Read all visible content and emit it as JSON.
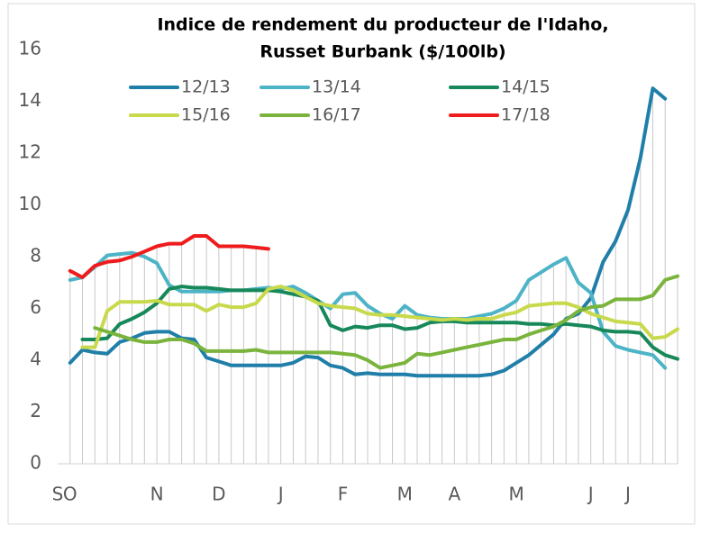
{
  "chart_data": {
    "type": "line",
    "title": [
      "Indice de rendement du producteur de l'Idaho,",
      "Russet Burbank ($/100lb)"
    ],
    "categories": [
      "S",
      "O",
      null,
      null,
      null,
      null,
      null,
      null,
      "N",
      null,
      null,
      null,
      null,
      "D",
      null,
      null,
      null,
      null,
      "J",
      null,
      null,
      null,
      null,
      "F",
      null,
      null,
      null,
      null,
      "M",
      null,
      null,
      null,
      "A",
      null,
      null,
      null,
      null,
      "M",
      null,
      null,
      null,
      null,
      null,
      "J",
      null,
      null,
      "J",
      null,
      null,
      null,
      null
    ],
    "ylim": [
      0,
      16
    ],
    "yticks": [
      0,
      2,
      4,
      6,
      8,
      10,
      12,
      14,
      16
    ],
    "series": [
      {
        "name": "12/13",
        "color": "#1f7fa8",
        "values": [
          null,
          3.9,
          4.4,
          4.3,
          4.25,
          4.7,
          4.85,
          5.05,
          5.1,
          5.1,
          4.85,
          4.8,
          4.1,
          3.95,
          3.8,
          3.8,
          3.8,
          3.8,
          3.8,
          3.9,
          4.15,
          4.1,
          3.8,
          3.7,
          3.45,
          3.5,
          3.45,
          3.45,
          3.45,
          3.4,
          3.4,
          3.4,
          3.4,
          3.4,
          3.4,
          3.45,
          3.6,
          3.9,
          4.2,
          4.6,
          5.0,
          5.6,
          5.8,
          6.4,
          7.8,
          8.6,
          9.8,
          11.8,
          14.5,
          14.1,
          null
        ]
      },
      {
        "name": "13/14",
        "color": "#4db3c6",
        "values": [
          null,
          7.1,
          7.2,
          7.6,
          8.05,
          8.1,
          8.15,
          8.0,
          7.75,
          6.9,
          6.65,
          6.65,
          6.65,
          6.65,
          6.7,
          6.7,
          6.75,
          6.8,
          6.75,
          6.85,
          6.6,
          6.3,
          6.0,
          6.55,
          6.6,
          6.1,
          5.8,
          5.6,
          6.1,
          5.75,
          5.65,
          5.6,
          5.6,
          5.6,
          5.7,
          5.8,
          6.0,
          6.3,
          7.1,
          7.4,
          7.7,
          7.95,
          7.0,
          6.6,
          5.1,
          4.55,
          4.4,
          4.3,
          4.2,
          3.7,
          null
        ]
      },
      {
        "name": "14/15",
        "color": "#17885a",
        "values": [
          null,
          null,
          4.8,
          4.8,
          4.85,
          5.4,
          5.6,
          5.85,
          6.2,
          6.75,
          6.85,
          6.8,
          6.8,
          6.75,
          6.7,
          6.7,
          6.7,
          6.7,
          6.65,
          6.55,
          6.45,
          6.3,
          5.35,
          5.15,
          5.3,
          5.25,
          5.35,
          5.35,
          5.2,
          5.25,
          5.45,
          5.5,
          5.5,
          5.45,
          5.45,
          5.45,
          5.45,
          5.45,
          5.4,
          5.4,
          5.35,
          5.4,
          5.35,
          5.3,
          5.15,
          5.1,
          5.1,
          5.05,
          4.5,
          4.2,
          4.05
        ]
      },
      {
        "name": "15/16",
        "color": "#c8d94c",
        "values": [
          null,
          null,
          4.5,
          4.5,
          5.9,
          6.25,
          6.25,
          6.25,
          6.3,
          6.15,
          6.15,
          6.15,
          5.9,
          6.15,
          6.05,
          6.05,
          6.2,
          6.75,
          6.85,
          6.7,
          6.45,
          6.2,
          6.1,
          6.05,
          6.0,
          5.8,
          5.75,
          5.75,
          5.7,
          5.65,
          5.6,
          5.55,
          5.6,
          5.55,
          5.6,
          5.6,
          5.75,
          5.85,
          6.1,
          6.15,
          6.2,
          6.2,
          6.05,
          5.8,
          5.65,
          5.5,
          5.45,
          5.4,
          4.85,
          4.9,
          5.2
        ]
      },
      {
        "name": "16/17",
        "color": "#7ab43c",
        "values": [
          null,
          null,
          null,
          5.25,
          5.1,
          4.95,
          4.8,
          4.7,
          4.7,
          4.8,
          4.8,
          4.65,
          4.35,
          4.35,
          4.35,
          4.35,
          4.4,
          4.3,
          4.3,
          4.3,
          4.3,
          4.3,
          4.3,
          4.25,
          4.2,
          4.0,
          3.7,
          3.8,
          3.9,
          4.25,
          4.2,
          4.3,
          4.4,
          4.5,
          4.6,
          4.7,
          4.8,
          4.8,
          5.0,
          5.15,
          5.3,
          5.55,
          5.9,
          6.05,
          6.1,
          6.35,
          6.35,
          6.35,
          6.5,
          7.1,
          7.25
        ]
      },
      {
        "name": "17/18",
        "color": "#ee1c1c",
        "values": [
          null,
          7.45,
          7.2,
          7.65,
          7.8,
          7.85,
          8.0,
          8.2,
          8.4,
          8.5,
          8.5,
          8.8,
          8.8,
          8.4,
          8.4,
          8.4,
          8.35,
          8.3,
          null,
          null,
          null,
          null,
          null,
          null,
          null,
          null,
          null,
          null,
          null,
          null,
          null,
          null,
          null,
          null,
          null,
          null,
          null,
          null,
          null,
          null,
          null,
          null,
          null,
          null,
          null,
          null,
          null,
          null,
          null,
          null,
          null
        ]
      }
    ]
  }
}
